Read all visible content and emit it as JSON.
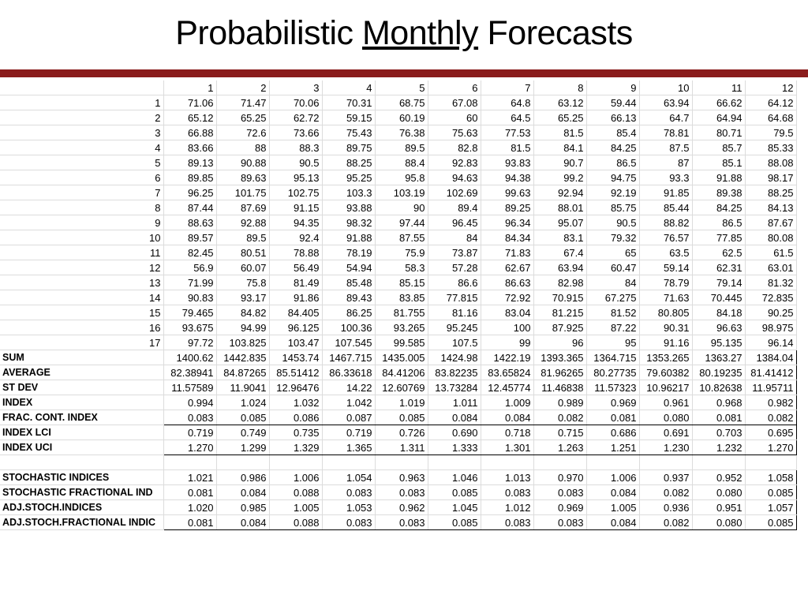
{
  "title": {
    "pre": "Probabilistic",
    "underlined": "Monthly",
    "post": "Forecasts"
  },
  "colors": {
    "rule": "#8a1c1c"
  },
  "columns": [
    "1",
    "2",
    "3",
    "4",
    "5",
    "6",
    "7",
    "8",
    "9",
    "10",
    "11",
    "12"
  ],
  "rows": [
    {
      "label": "1",
      "values": [
        "71.06",
        "71.47",
        "70.06",
        "70.31",
        "68.75",
        "67.08",
        "64.8",
        "63.12",
        "59.44",
        "63.94",
        "66.62",
        "64.12"
      ]
    },
    {
      "label": "2",
      "values": [
        "65.12",
        "65.25",
        "62.72",
        "59.15",
        "60.19",
        "60",
        "64.5",
        "65.25",
        "66.13",
        "64.7",
        "64.94",
        "64.68"
      ]
    },
    {
      "label": "3",
      "values": [
        "66.88",
        "72.6",
        "73.66",
        "75.43",
        "76.38",
        "75.63",
        "77.53",
        "81.5",
        "85.4",
        "78.81",
        "80.71",
        "79.5"
      ]
    },
    {
      "label": "4",
      "values": [
        "83.66",
        "88",
        "88.3",
        "89.75",
        "89.5",
        "82.8",
        "81.5",
        "84.1",
        "84.25",
        "87.5",
        "85.7",
        "85.33"
      ]
    },
    {
      "label": "5",
      "values": [
        "89.13",
        "90.88",
        "90.5",
        "88.25",
        "88.4",
        "92.83",
        "93.83",
        "90.7",
        "86.5",
        "87",
        "85.1",
        "88.08"
      ]
    },
    {
      "label": "6",
      "values": [
        "89.85",
        "89.63",
        "95.13",
        "95.25",
        "95.8",
        "94.63",
        "94.38",
        "99.2",
        "94.75",
        "93.3",
        "91.88",
        "98.17"
      ]
    },
    {
      "label": "7",
      "values": [
        "96.25",
        "101.75",
        "102.75",
        "103.3",
        "103.19",
        "102.69",
        "99.63",
        "92.94",
        "92.19",
        "91.85",
        "89.38",
        "88.25"
      ]
    },
    {
      "label": "8",
      "values": [
        "87.44",
        "87.69",
        "91.15",
        "93.88",
        "90",
        "89.4",
        "89.25",
        "88.01",
        "85.75",
        "85.44",
        "84.25",
        "84.13"
      ]
    },
    {
      "label": "9",
      "values": [
        "88.63",
        "92.88",
        "94.35",
        "98.32",
        "97.44",
        "96.45",
        "96.34",
        "95.07",
        "90.5",
        "88.82",
        "86.5",
        "87.67"
      ]
    },
    {
      "label": "10",
      "values": [
        "89.57",
        "89.5",
        "92.4",
        "91.88",
        "87.55",
        "84",
        "84.34",
        "83.1",
        "79.32",
        "76.57",
        "77.85",
        "80.08"
      ]
    },
    {
      "label": "11",
      "values": [
        "82.45",
        "80.51",
        "78.88",
        "78.19",
        "75.9",
        "73.87",
        "71.83",
        "67.4",
        "65",
        "63.5",
        "62.5",
        "61.5"
      ]
    },
    {
      "label": "12",
      "values": [
        "56.9",
        "60.07",
        "56.49",
        "54.94",
        "58.3",
        "57.28",
        "62.67",
        "63.94",
        "60.47",
        "59.14",
        "62.31",
        "63.01"
      ]
    },
    {
      "label": "13",
      "values": [
        "71.99",
        "75.8",
        "81.49",
        "85.48",
        "85.15",
        "86.6",
        "86.63",
        "82.98",
        "84",
        "78.79",
        "79.14",
        "81.32"
      ]
    },
    {
      "label": "14",
      "values": [
        "90.83",
        "93.17",
        "91.86",
        "89.43",
        "83.85",
        "77.815",
        "72.92",
        "70.915",
        "67.275",
        "71.63",
        "70.445",
        "72.835"
      ]
    },
    {
      "label": "15",
      "values": [
        "79.465",
        "84.82",
        "84.405",
        "86.25",
        "81.755",
        "81.16",
        "83.04",
        "81.215",
        "81.52",
        "80.805",
        "84.18",
        "90.25"
      ]
    },
    {
      "label": "16",
      "values": [
        "93.675",
        "94.99",
        "96.125",
        "100.36",
        "93.265",
        "95.245",
        "100",
        "87.925",
        "87.22",
        "90.31",
        "96.63",
        "98.975"
      ]
    },
    {
      "label": "17",
      "values": [
        "97.72",
        "103.825",
        "103.47",
        "107.545",
        "99.585",
        "107.5",
        "99",
        "96",
        "95",
        "91.16",
        "95.135",
        "96.14"
      ]
    }
  ],
  "stats": [
    {
      "label": "SUM",
      "values": [
        "1400.62",
        "1442.835",
        "1453.74",
        "1467.715",
        "1435.005",
        "1424.98",
        "1422.19",
        "1393.365",
        "1364.715",
        "1353.265",
        "1363.27",
        "1384.04"
      ]
    },
    {
      "label": "AVERAGE",
      "values": [
        "82.38941",
        "84.87265",
        "85.51412",
        "86.33618",
        "84.41206",
        "83.82235",
        "83.65824",
        "81.96265",
        "80.27735",
        "79.60382",
        "80.19235",
        "81.41412"
      ]
    },
    {
      "label": "ST DEV",
      "values": [
        "11.57589",
        "11.9041",
        "12.96476",
        "14.22",
        "12.60769",
        "13.73284",
        "12.45774",
        "11.46838",
        "11.57323",
        "10.96217",
        "10.82638",
        "11.95711"
      ]
    },
    {
      "label": "INDEX",
      "values": [
        "0.994",
        "1.024",
        "1.032",
        "1.042",
        "1.019",
        "1.011",
        "1.009",
        "0.989",
        "0.969",
        "0.961",
        "0.968",
        "0.982"
      ]
    },
    {
      "label": "FRAC. CONT. INDEX",
      "values": [
        "0.083",
        "0.085",
        "0.086",
        "0.087",
        "0.085",
        "0.084",
        "0.084",
        "0.082",
        "0.081",
        "0.080",
        "0.081",
        "0.082"
      ]
    },
    {
      "label": "INDEX LCI",
      "values": [
        "0.719",
        "0.749",
        "0.735",
        "0.719",
        "0.726",
        "0.690",
        "0.718",
        "0.715",
        "0.686",
        "0.691",
        "0.703",
        "0.695"
      ]
    },
    {
      "label": "INDEX UCI",
      "values": [
        "1.270",
        "1.299",
        "1.329",
        "1.365",
        "1.311",
        "1.333",
        "1.301",
        "1.263",
        "1.251",
        "1.230",
        "1.232",
        "1.270"
      ]
    }
  ],
  "stoch": [
    {
      "label": "STOCHASTIC INDICES",
      "values": [
        "1.021",
        "0.986",
        "1.006",
        "1.054",
        "0.963",
        "1.046",
        "1.013",
        "0.970",
        "1.006",
        "0.937",
        "0.952",
        "1.058"
      ]
    },
    {
      "label": "STOCHASTIC FRACTIONAL IND",
      "values": [
        "0.081",
        "0.084",
        "0.088",
        "0.083",
        "0.083",
        "0.085",
        "0.083",
        "0.083",
        "0.084",
        "0.082",
        "0.080",
        "0.085"
      ]
    },
    {
      "label": "ADJ.STOCH.INDICES",
      "values": [
        "1.020",
        "0.985",
        "1.005",
        "1.053",
        "0.962",
        "1.045",
        "1.012",
        "0.969",
        "1.005",
        "0.936",
        "0.951",
        "1.057"
      ]
    },
    {
      "label": "ADJ.STOCH.FRACTIONAL INDIC",
      "values": [
        "0.081",
        "0.084",
        "0.088",
        "0.083",
        "0.083",
        "0.085",
        "0.083",
        "0.083",
        "0.084",
        "0.082",
        "0.080",
        "0.085"
      ]
    }
  ]
}
